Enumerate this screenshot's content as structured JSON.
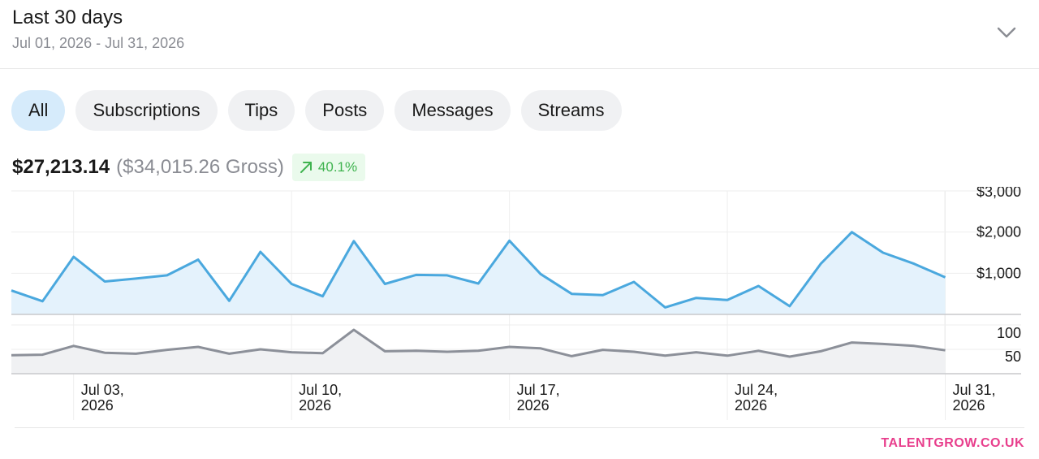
{
  "header": {
    "title": "Last 30 days",
    "date_range": "Jul 01, 2026 - Jul 31, 2026",
    "expand_icon": "chevron-down-icon"
  },
  "tabs": [
    {
      "label": "All",
      "active": true
    },
    {
      "label": "Subscriptions",
      "active": false
    },
    {
      "label": "Tips",
      "active": false
    },
    {
      "label": "Posts",
      "active": false
    },
    {
      "label": "Messages",
      "active": false
    },
    {
      "label": "Streams",
      "active": false
    }
  ],
  "summary": {
    "net": "$27,213.14",
    "gross": "($34,015.26 Gross)",
    "change": "40.1%",
    "change_icon": "arrow-up-right-icon",
    "change_color": "#3fb34f"
  },
  "colors": {
    "earnings_line": "#4aa8de",
    "earnings_fill": "#e4f2fc",
    "count_line": "#8c9099",
    "count_fill": "#f0f1f3",
    "brand": "#e83e8c",
    "active_tab": "#d6ebfb"
  },
  "chart_data": {
    "type": "line",
    "x": [
      "Jul 01",
      "Jul 02",
      "Jul 03",
      "Jul 04",
      "Jul 05",
      "Jul 06",
      "Jul 07",
      "Jul 08",
      "Jul 09",
      "Jul 10",
      "Jul 11",
      "Jul 12",
      "Jul 13",
      "Jul 14",
      "Jul 15",
      "Jul 16",
      "Jul 17",
      "Jul 18",
      "Jul 19",
      "Jul 20",
      "Jul 21",
      "Jul 22",
      "Jul 23",
      "Jul 24",
      "Jul 25",
      "Jul 26",
      "Jul 27",
      "Jul 28",
      "Jul 29",
      "Jul 30",
      "Jul 31"
    ],
    "x_ticks": [
      {
        "index": 2,
        "line1": "Jul 03,",
        "line2": "2026"
      },
      {
        "index": 9,
        "line1": "Jul 10,",
        "line2": "2026"
      },
      {
        "index": 16,
        "line1": "Jul 17,",
        "line2": "2026"
      },
      {
        "index": 23,
        "line1": "Jul 24,",
        "line2": "2026"
      },
      {
        "index": 30,
        "line1": "Jul 31,",
        "line2": "2026"
      }
    ],
    "series": [
      {
        "key": "earnings",
        "values": [
          580,
          320,
          1400,
          800,
          870,
          950,
          1330,
          330,
          1520,
          740,
          440,
          1780,
          740,
          960,
          950,
          750,
          1790,
          980,
          500,
          470,
          790,
          170,
          400,
          350,
          690,
          200,
          1230,
          2000,
          1500,
          1230,
          900
        ],
        "ylim": [
          0,
          3000
        ],
        "y_ticks": [
          {
            "value": 1000,
            "label": "$1,000"
          },
          {
            "value": 2000,
            "label": "$2,000"
          },
          {
            "value": 3000,
            "label": "$3,000"
          }
        ]
      },
      {
        "key": "count",
        "values": [
          38,
          39,
          57,
          43,
          41,
          49,
          55,
          41,
          50,
          44,
          42,
          90,
          46,
          47,
          45,
          47,
          55,
          52,
          36,
          49,
          45,
          37,
          44,
          37,
          47,
          35,
          46,
          64,
          61,
          57,
          48
        ],
        "ylim": [
          0,
          100
        ],
        "y_ticks": [
          {
            "value": 50,
            "label": "50"
          },
          {
            "value": 100,
            "label": "100"
          }
        ]
      }
    ],
    "grid": true
  },
  "footer": {
    "brand": "TALENTGROW.CO.UK"
  }
}
